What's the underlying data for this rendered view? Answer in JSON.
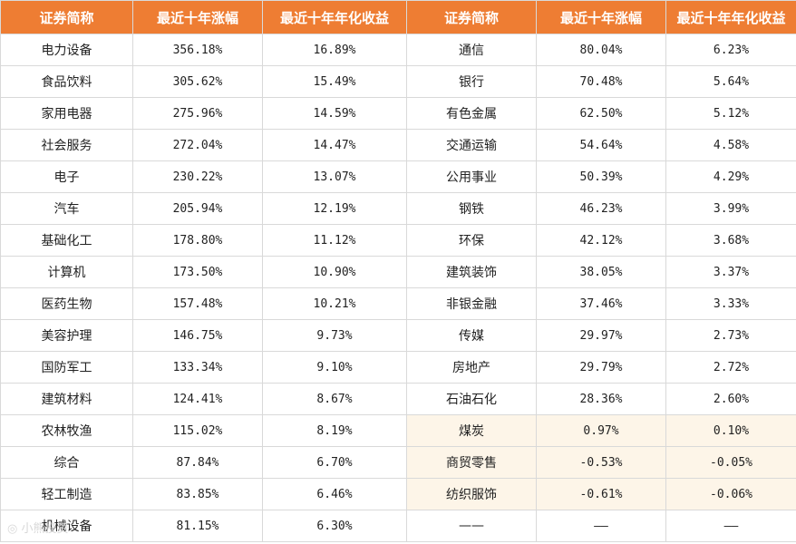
{
  "headers": [
    "证券简称",
    "最近十年涨幅",
    "最近十年年化收益",
    "证券简称",
    "最近十年涨幅",
    "最近十年年化收益"
  ],
  "rows": [
    {
      "l": [
        "电力设备",
        "356.18%",
        "16.89%"
      ],
      "r": [
        "通信",
        "80.04%",
        "6.23%"
      ]
    },
    {
      "l": [
        "食品饮料",
        "305.62%",
        "15.49%"
      ],
      "r": [
        "银行",
        "70.48%",
        "5.64%"
      ]
    },
    {
      "l": [
        "家用电器",
        "275.96%",
        "14.59%"
      ],
      "r": [
        "有色金属",
        "62.50%",
        "5.12%"
      ]
    },
    {
      "l": [
        "社会服务",
        "272.04%",
        "14.47%"
      ],
      "r": [
        "交通运输",
        "54.64%",
        "4.58%"
      ]
    },
    {
      "l": [
        "电子",
        "230.22%",
        "13.07%"
      ],
      "r": [
        "公用事业",
        "50.39%",
        "4.29%"
      ]
    },
    {
      "l": [
        "汽车",
        "205.94%",
        "12.19%"
      ],
      "r": [
        "钢铁",
        "46.23%",
        "3.99%"
      ]
    },
    {
      "l": [
        "基础化工",
        "178.80%",
        "11.12%"
      ],
      "r": [
        "环保",
        "42.12%",
        "3.68%"
      ]
    },
    {
      "l": [
        "计算机",
        "173.50%",
        "10.90%"
      ],
      "r": [
        "建筑装饰",
        "38.05%",
        "3.37%"
      ]
    },
    {
      "l": [
        "医药生物",
        "157.48%",
        "10.21%"
      ],
      "r": [
        "非银金融",
        "37.46%",
        "3.33%"
      ]
    },
    {
      "l": [
        "美容护理",
        "146.75%",
        "9.73%"
      ],
      "r": [
        "传媒",
        "29.97%",
        "2.73%"
      ]
    },
    {
      "l": [
        "国防军工",
        "133.34%",
        "9.10%"
      ],
      "r": [
        "房地产",
        "29.79%",
        "2.72%"
      ]
    },
    {
      "l": [
        "建筑材料",
        "124.41%",
        "8.67%"
      ],
      "r": [
        "石油石化",
        "28.36%",
        "2.60%"
      ]
    },
    {
      "l": [
        "农林牧渔",
        "115.02%",
        "8.19%"
      ],
      "r": [
        "煤炭",
        "0.97%",
        "0.10%"
      ],
      "hl": true
    },
    {
      "l": [
        "综合",
        "87.84%",
        "6.70%"
      ],
      "r": [
        "商贸零售",
        "-0.53%",
        "-0.05%"
      ],
      "hl": true
    },
    {
      "l": [
        "轻工制造",
        "83.85%",
        "6.46%"
      ],
      "r": [
        "纺织服饰",
        "-0.61%",
        "-0.06%"
      ],
      "hl": true
    },
    {
      "l": [
        "机械设备",
        "81.15%",
        "6.30%"
      ],
      "r": [
        "——",
        "——",
        "——"
      ]
    }
  ],
  "colors": {
    "header_bg": "#ee7d33",
    "highlight_bg": "#fdf5e8"
  }
}
